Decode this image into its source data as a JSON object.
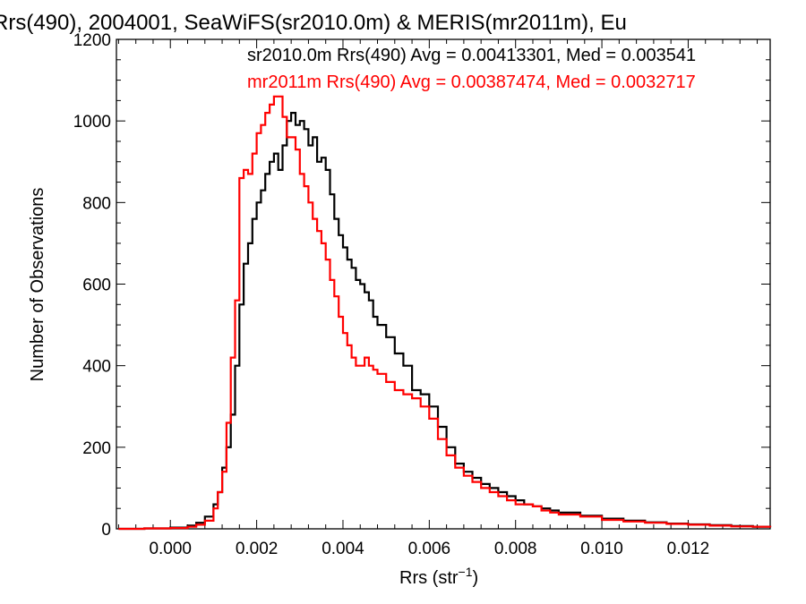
{
  "chart_data": {
    "type": "line",
    "title": "Rrs(490), 2004001, SeaWiFS(sr2010.0m) & MERIS(mr2011m), Eu",
    "xlabel_main": "Rrs (str",
    "xlabel_sup": "−1",
    "xlabel_close": ")",
    "ylabel": "Number of Observations",
    "xlim": [
      -0.00125,
      0.0139
    ],
    "ylim": [
      0,
      1200
    ],
    "x_ticks": [
      0.0,
      0.002,
      0.004,
      0.006,
      0.008,
      0.01,
      0.012
    ],
    "x_tick_labels": [
      "0.000",
      "0.002",
      "0.004",
      "0.006",
      "0.008",
      "0.010",
      "0.012"
    ],
    "y_ticks": [
      0,
      200,
      400,
      600,
      800,
      1000,
      1200
    ],
    "y_tick_labels": [
      "0",
      "200",
      "400",
      "600",
      "800",
      "1000",
      "1200"
    ],
    "grid": false,
    "legend_position": "top-right",
    "series": [
      {
        "name": "sr2010.0m Rrs(490) Avg = 0.00413301, Med = 0.003541",
        "color": "#000000",
        "x": [
          -0.0012,
          -0.0006,
          0.0,
          0.0004,
          0.0006,
          0.0008,
          0.001,
          0.0011,
          0.0012,
          0.0013,
          0.0014,
          0.0015,
          0.0016,
          0.0017,
          0.0018,
          0.0019,
          0.002,
          0.0021,
          0.0022,
          0.0023,
          0.0024,
          0.0025,
          0.0026,
          0.0027,
          0.0028,
          0.0029,
          0.003,
          0.0031,
          0.0032,
          0.0033,
          0.0034,
          0.0035,
          0.0036,
          0.0037,
          0.0038,
          0.0039,
          0.004,
          0.0041,
          0.0042,
          0.0043,
          0.0044,
          0.0045,
          0.0046,
          0.0047,
          0.0048,
          0.005,
          0.0052,
          0.0054,
          0.0056,
          0.0058,
          0.006,
          0.0062,
          0.0064,
          0.0066,
          0.0068,
          0.007,
          0.0072,
          0.0074,
          0.0076,
          0.0078,
          0.008,
          0.0082,
          0.0084,
          0.0086,
          0.0088,
          0.009,
          0.0095,
          0.01,
          0.0105,
          0.011,
          0.0115,
          0.012,
          0.0125,
          0.013,
          0.0135,
          0.0139
        ],
        "values": [
          0,
          1,
          3,
          8,
          15,
          30,
          60,
          90,
          150,
          200,
          280,
          400,
          550,
          650,
          700,
          760,
          800,
          830,
          870,
          900,
          920,
          880,
          940,
          1000,
          1020,
          990,
          1000,
          980,
          940,
          960,
          900,
          910,
          880,
          820,
          760,
          720,
          690,
          660,
          640,
          610,
          600,
          580,
          560,
          520,
          500,
          470,
          430,
          400,
          340,
          330,
          300,
          250,
          200,
          160,
          140,
          125,
          110,
          100,
          90,
          80,
          70,
          60,
          55,
          50,
          45,
          40,
          32,
          25,
          20,
          16,
          13,
          11,
          9,
          7,
          5,
          4
        ]
      },
      {
        "name": "mr2011m Rrs(490) Avg = 0.00387474, Med = 0.0032717",
        "color": "#ff0000",
        "x": [
          -0.0012,
          -0.0006,
          0.0,
          0.0004,
          0.0006,
          0.0008,
          0.001,
          0.0011,
          0.0012,
          0.0013,
          0.0014,
          0.0015,
          0.0016,
          0.0017,
          0.0018,
          0.0019,
          0.002,
          0.0021,
          0.0022,
          0.0023,
          0.0024,
          0.0025,
          0.0026,
          0.0027,
          0.0028,
          0.0029,
          0.003,
          0.0031,
          0.0032,
          0.0033,
          0.0034,
          0.0035,
          0.0036,
          0.0037,
          0.0038,
          0.0039,
          0.004,
          0.0041,
          0.0042,
          0.0043,
          0.0044,
          0.0045,
          0.0046,
          0.0047,
          0.0048,
          0.005,
          0.0052,
          0.0054,
          0.0056,
          0.0058,
          0.006,
          0.0062,
          0.0064,
          0.0066,
          0.0068,
          0.007,
          0.0072,
          0.0074,
          0.0076,
          0.0078,
          0.008,
          0.0082,
          0.0084,
          0.0086,
          0.0088,
          0.009,
          0.0095,
          0.01,
          0.0105,
          0.011,
          0.0115,
          0.012,
          0.0125,
          0.013,
          0.0135,
          0.0139
        ],
        "values": [
          0,
          1,
          2,
          5,
          10,
          20,
          50,
          90,
          140,
          260,
          420,
          560,
          860,
          880,
          870,
          920,
          970,
          990,
          1020,
          1040,
          1060,
          1060,
          1010,
          960,
          960,
          930,
          870,
          840,
          800,
          760,
          730,
          700,
          660,
          610,
          570,
          520,
          480,
          450,
          420,
          400,
          400,
          420,
          400,
          390,
          380,
          360,
          340,
          330,
          320,
          300,
          270,
          220,
          180,
          150,
          130,
          115,
          100,
          90,
          80,
          70,
          60,
          60,
          55,
          45,
          40,
          35,
          30,
          22,
          18,
          15,
          12,
          10,
          8,
          6,
          5,
          4
        ]
      }
    ]
  }
}
